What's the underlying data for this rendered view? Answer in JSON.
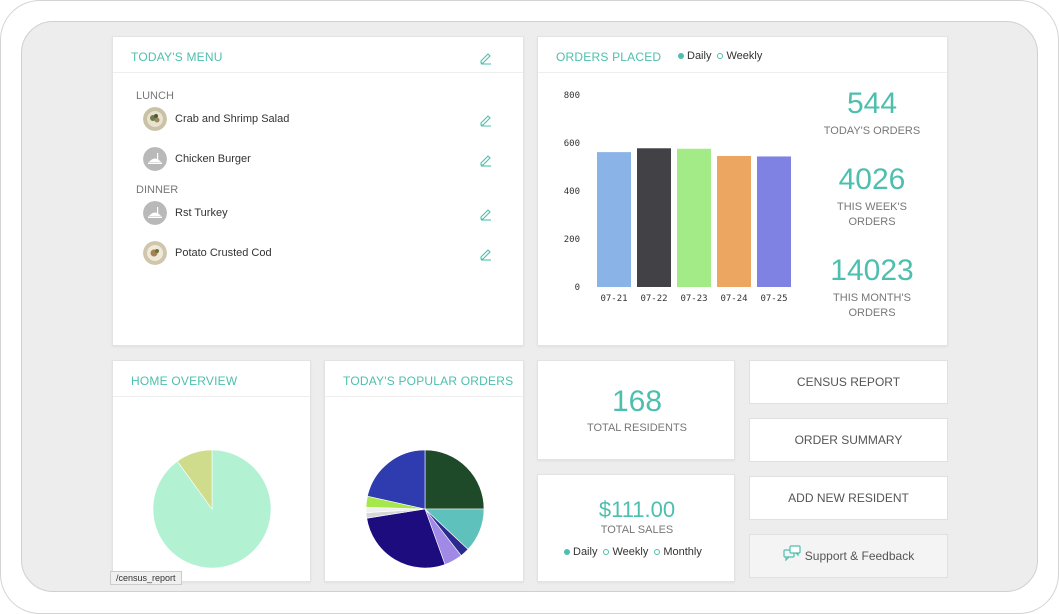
{
  "menu": {
    "title": "TODAY'S MENU",
    "lunch_label": "LUNCH",
    "dinner_label": "DINNER",
    "lunch_items": [
      {
        "name": "Crab and Shrimp Salad",
        "thumb": "photo"
      },
      {
        "name": "Chicken Burger",
        "thumb": "placeholder"
      }
    ],
    "dinner_items": [
      {
        "name": "Rst Turkey",
        "thumb": "placeholder"
      },
      {
        "name": "Potato Crusted Cod",
        "thumb": "photo"
      }
    ]
  },
  "orders": {
    "title": "ORDERS PLACED",
    "legend_daily": "Daily",
    "legend_weekly": "Weekly",
    "today_value": "544",
    "today_label": "TODAY'S ORDERS",
    "week_value": "4026",
    "week_label": "THIS WEEK'S ORDERS",
    "month_value": "14023",
    "month_label": "THIS MONTH'S ORDERS"
  },
  "chart_data": [
    {
      "type": "bar",
      "categories": [
        "07-21",
        "07-22",
        "07-23",
        "07-24",
        "07-25"
      ],
      "values": [
        562,
        578,
        576,
        546,
        544
      ],
      "colors": [
        "#8ab4e8",
        "#424246",
        "#a3eb86",
        "#eda662",
        "#7f82e3"
      ],
      "ylim": [
        0,
        800
      ],
      "yticks": [
        "0",
        "200",
        "400",
        "600",
        "800"
      ],
      "grid": false
    },
    {
      "type": "pie",
      "values": [
        90,
        10
      ],
      "colors": [
        "#b2f2d2",
        "#cfdc8c"
      ]
    },
    {
      "type": "pie",
      "values": [
        25,
        12,
        2.5,
        5,
        28,
        1.5,
        1.5,
        3,
        21.5
      ],
      "colors": [
        "#1f4a2a",
        "#5ec1bb",
        "#2b2a8e",
        "#a18ae6",
        "#1d0c7d",
        "#d7d7d7",
        "#f0f0f0",
        "#a6e84c",
        "#2f3cb0"
      ]
    }
  ],
  "home": {
    "title": "HOME OVERVIEW"
  },
  "popular": {
    "title": "TODAY'S POPULAR ORDERS"
  },
  "residents": {
    "value": "168",
    "label": "TOTAL RESIDENTS"
  },
  "sales": {
    "value": "$111.00",
    "label": "TOTAL SALES",
    "legend_daily": "Daily",
    "legend_weekly": "Weekly",
    "legend_monthly": "Monthly"
  },
  "actions": {
    "census": "CENSUS REPORT",
    "summary": "ORDER SUMMARY",
    "add_resident": "ADD NEW RESIDENT",
    "support": "Support & Feedback"
  },
  "status_url": "/census_report",
  "colors": {
    "accent": "#4dbfae",
    "background": "#ededed"
  }
}
